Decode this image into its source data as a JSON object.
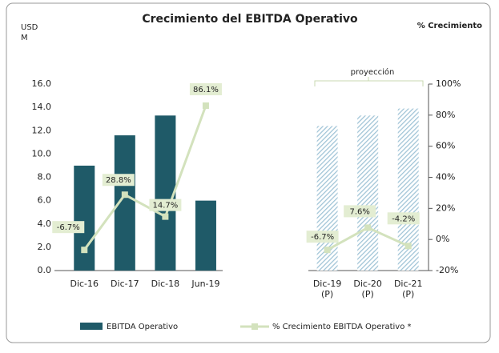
{
  "chart_data": {
    "type": "bar_line",
    "title": "Crecimiento del EBITDA Operativo",
    "y_label": "USD M",
    "y2_label": "% Crecimiento",
    "annotation": "proyección",
    "categories": [
      "Dic-16",
      "Dic-17",
      "Dic-18",
      "Jun-19",
      null,
      null,
      "Dic-19 (P)",
      "Dic-20 (P)",
      "Dic-21 (P)"
    ],
    "series": [
      {
        "name": "EBITDA Operativo",
        "type": "bar",
        "color": "#1f5a68",
        "hatch_color": "#9fc3d6",
        "hatched": [
          false,
          false,
          false,
          false,
          false,
          false,
          true,
          true,
          true
        ],
        "values": [
          9.0,
          11.6,
          13.3,
          6.0,
          null,
          null,
          12.4,
          13.3,
          13.9
        ]
      },
      {
        "name": "% Crecimiento EBITDA Operativo *",
        "type": "line",
        "axis": "y2",
        "color": "#d3e2bd",
        "values": [
          -6.7,
          28.8,
          14.7,
          86.1,
          null,
          null,
          -6.7,
          7.6,
          -4.2
        ],
        "value_labels": [
          "-6.7%",
          "28.8%",
          "14.7%",
          "86.1%",
          null,
          null,
          "-6.7%",
          "7.6%",
          "-4.2%"
        ]
      }
    ],
    "ylim": [
      0,
      16
    ],
    "yticks": [
      {
        "value": 0,
        "label": "0.0"
      },
      {
        "value": 2,
        "label": "2.0"
      },
      {
        "value": 4,
        "label": "4.0"
      },
      {
        "value": 6,
        "label": "6.0"
      },
      {
        "value": 8,
        "label": "8.0"
      },
      {
        "value": 10,
        "label": "10.0"
      },
      {
        "value": 12,
        "label": "12.0"
      },
      {
        "value": 14,
        "label": "14.0"
      },
      {
        "value": 16,
        "label": "16.0"
      }
    ],
    "y2lim": [
      -20,
      100
    ],
    "y2ticks": [
      {
        "value": -20,
        "label": "-20%"
      },
      {
        "value": 0,
        "label": "0%"
      },
      {
        "value": 20,
        "label": "20%"
      },
      {
        "value": 40,
        "label": "40%"
      },
      {
        "value": 60,
        "label": "60%"
      },
      {
        "value": 80,
        "label": "80%"
      },
      {
        "value": 100,
        "label": "100%"
      }
    ],
    "legend": "bottom"
  }
}
